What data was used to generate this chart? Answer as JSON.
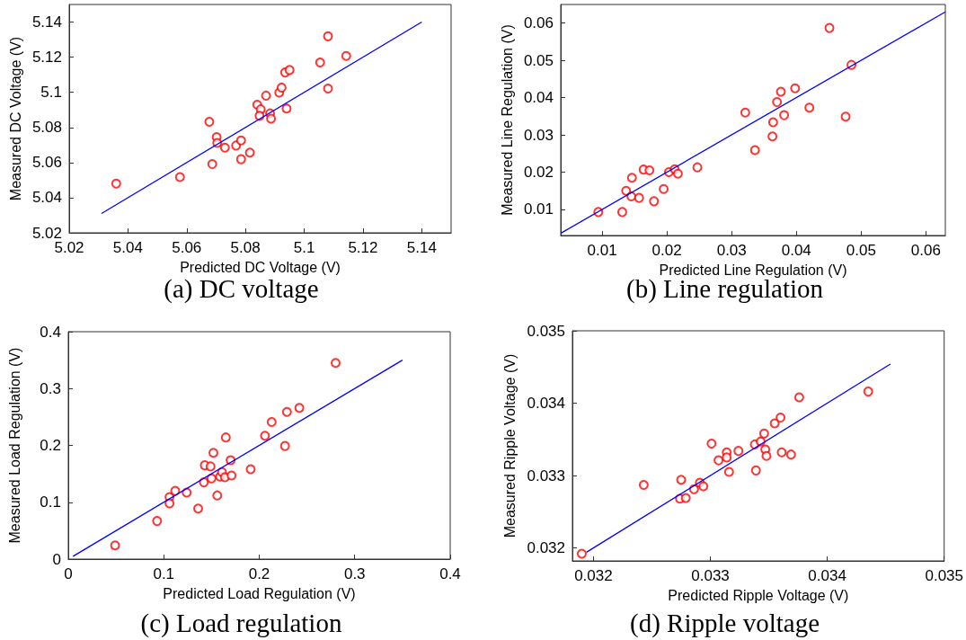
{
  "chart_data": [
    {
      "type": "scatter",
      "title": "(a) DC voltage",
      "xlabel": "Predicted DC Voltage (V)",
      "ylabel": "Measured DC Voltage (V)",
      "xlim": [
        5.02,
        5.15
      ],
      "ylim": [
        5.02,
        5.15
      ],
      "xticks": [
        5.02,
        5.04,
        5.06,
        5.08,
        5.1,
        5.12,
        5.14
      ],
      "yticks": [
        5.02,
        5.04,
        5.06,
        5.08,
        5.1,
        5.12,
        5.14
      ],
      "grid": false,
      "series": [
        {
          "marker": "circle",
          "color": "#ff0000",
          "x": [
            5.036,
            5.0577,
            5.0677,
            5.0687,
            5.0702,
            5.0704,
            5.073,
            5.0768,
            5.0785,
            5.0785,
            5.0815,
            5.084,
            5.0852,
            5.0848,
            5.087,
            5.0884,
            5.0887,
            5.0915,
            5.0923,
            5.0935,
            5.095,
            5.094,
            5.1054,
            5.1081,
            5.1081,
            5.1143
          ],
          "values": [
            5.048,
            5.0517,
            5.0832,
            5.0591,
            5.0745,
            5.0712,
            5.0685,
            5.0697,
            5.0726,
            5.0619,
            5.0657,
            5.0929,
            5.0903,
            5.0866,
            5.0981,
            5.088,
            5.085,
            5.0998,
            5.1027,
            5.1113,
            5.1127,
            5.0908,
            5.117,
            5.1319,
            5.1021,
            5.1207
          ]
        },
        {
          "type": "line",
          "marker": "none",
          "color": "#0000ff",
          "x": [
            5.031,
            5.14
          ],
          "values": [
            5.031,
            5.14
          ]
        }
      ]
    },
    {
      "type": "scatter",
      "title": "(b) Line regulation",
      "xlabel": "Predicted Line Regulation (V)",
      "ylabel": "Measured Line Regulation (V)",
      "xlim": [
        0.0036,
        0.063
      ],
      "ylim": [
        0.003,
        0.065
      ],
      "xticks": [
        0.01,
        0.02,
        0.03,
        0.04,
        0.05,
        0.06
      ],
      "yticks": [
        0.01,
        0.02,
        0.03,
        0.04,
        0.05,
        0.06
      ],
      "grid": false,
      "series": [
        {
          "marker": "circle",
          "color": "#ff0000",
          "x": [
            0.0094,
            0.0131,
            0.0137,
            0.0145,
            0.0146,
            0.0157,
            0.0164,
            0.0173,
            0.018,
            0.0195,
            0.0203,
            0.0212,
            0.0217,
            0.0247,
            0.0321,
            0.0336,
            0.0363,
            0.0364,
            0.037,
            0.0376,
            0.0381,
            0.0398,
            0.042,
            0.0451,
            0.0476,
            0.0485
          ],
          "values": [
            0.0093,
            0.0093,
            0.015,
            0.0135,
            0.0185,
            0.0131,
            0.0207,
            0.0205,
            0.0122,
            0.0155,
            0.02,
            0.0208,
            0.0196,
            0.0213,
            0.036,
            0.0259,
            0.0296,
            0.0334,
            0.0388,
            0.0416,
            0.0353,
            0.0425,
            0.0373,
            0.0587,
            0.0349,
            0.0488
          ]
        },
        {
          "type": "line",
          "marker": "none",
          "color": "#0000ff",
          "x": [
            0.0037,
            0.063
          ],
          "values": [
            0.0037,
            0.063
          ]
        }
      ]
    },
    {
      "type": "scatter",
      "title": "(c) Load regulation",
      "xlabel": "Predicted Load Regulation (V)",
      "ylabel": "Measured Load Regulation (V)",
      "xlim": [
        0,
        0.4
      ],
      "ylim": [
        0,
        0.4
      ],
      "xticks": [
        0,
        0.1,
        0.2,
        0.3,
        0.4
      ],
      "yticks": [
        0,
        0.1,
        0.2,
        0.3,
        0.4
      ],
      "grid": false,
      "series": [
        {
          "marker": "circle",
          "color": "#ff0000",
          "x": [
            0.049,
            0.093,
            0.106,
            0.106,
            0.112,
            0.124,
            0.136,
            0.142,
            0.143,
            0.149,
            0.15,
            0.152,
            0.156,
            0.159,
            0.161,
            0.164,
            0.165,
            0.17,
            0.171,
            0.191,
            0.206,
            0.213,
            0.227,
            0.229,
            0.242,
            0.28
          ],
          "values": [
            0.024,
            0.067,
            0.109,
            0.098,
            0.12,
            0.117,
            0.089,
            0.135,
            0.165,
            0.163,
            0.142,
            0.187,
            0.112,
            0.145,
            0.153,
            0.144,
            0.214,
            0.174,
            0.147,
            0.158,
            0.217,
            0.241,
            0.199,
            0.259,
            0.266,
            0.345
          ]
        },
        {
          "type": "line",
          "marker": "none",
          "color": "#0000ff",
          "x": [
            0.005,
            0.35
          ],
          "values": [
            0.005,
            0.35
          ]
        }
      ]
    },
    {
      "type": "scatter",
      "title": "(d) Ripple voltage",
      "xlabel": "Predicted Ripple Voltage (V)",
      "ylabel": "Measured Ripple Voltage (V)",
      "xlim": [
        0.03182,
        0.035
      ],
      "ylim": [
        0.03182,
        0.035
      ],
      "xticks": [
        0.032,
        0.033,
        0.034,
        0.035
      ],
      "yticks": [
        0.032,
        0.033,
        0.034,
        0.035
      ],
      "grid": false,
      "series": [
        {
          "marker": "circle",
          "color": "#ff0000",
          "x": [
            0.0319,
            0.03243,
            0.03274,
            0.03275,
            0.03279,
            0.03286,
            0.03291,
            0.03294,
            0.03301,
            0.03307,
            0.03314,
            0.03314,
            0.03316,
            0.03324,
            0.03338,
            0.03339,
            0.03343,
            0.03346,
            0.03347,
            0.03348,
            0.03355,
            0.0336,
            0.03361,
            0.03369,
            0.03376,
            0.03435
          ],
          "values": [
            0.03192,
            0.03287,
            0.03268,
            0.03294,
            0.03269,
            0.03281,
            0.0329,
            0.03285,
            0.03344,
            0.03321,
            0.03332,
            0.03325,
            0.03305,
            0.03334,
            0.03343,
            0.03307,
            0.03347,
            0.03358,
            0.03336,
            0.03327,
            0.03372,
            0.0338,
            0.03332,
            0.03329,
            0.03408,
            0.03416
          ]
        },
        {
          "type": "line",
          "marker": "none",
          "color": "#0000ff",
          "x": [
            0.03194,
            0.03454
          ],
          "values": [
            0.03194,
            0.03454
          ]
        }
      ]
    }
  ]
}
